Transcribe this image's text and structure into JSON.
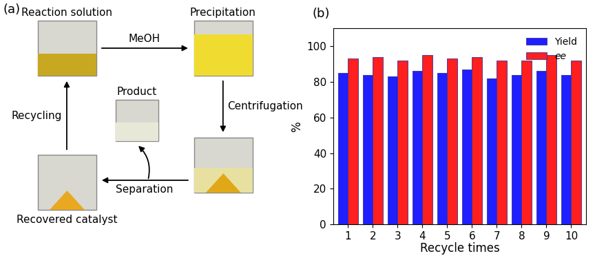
{
  "panel_a": {
    "label": "(a)",
    "nodes": {
      "reaction_solution": "Reaction solution",
      "precipitation": "Precipitation",
      "product": "Product",
      "recovered_catalyst": "Recovered catalyst"
    },
    "edges": {
      "meoh": "MeOH",
      "centrifugation": "Centrifugation",
      "separation": "Separation",
      "recycling": "Recycling"
    }
  },
  "chart_data": {
    "type": "bar",
    "panel_label": "(b)",
    "x_label": "Recycle times",
    "y_label": "%",
    "categories": [
      "1",
      "2",
      "3",
      "4",
      "5",
      "6",
      "7",
      "8",
      "9",
      "10"
    ],
    "series": [
      {
        "name": "Yield",
        "color": "#1f1fff",
        "values": [
          85,
          84,
          83,
          86,
          85,
          87,
          82,
          84,
          86,
          84
        ]
      },
      {
        "name": "ee",
        "color": "#ff1f1f",
        "values": [
          93,
          94,
          92,
          95,
          93,
          94,
          92,
          92,
          95,
          92
        ]
      }
    ],
    "ylim": [
      0,
      110
    ],
    "yticks": [
      0,
      20,
      40,
      60,
      80,
      100
    ],
    "legend": "upper right"
  }
}
